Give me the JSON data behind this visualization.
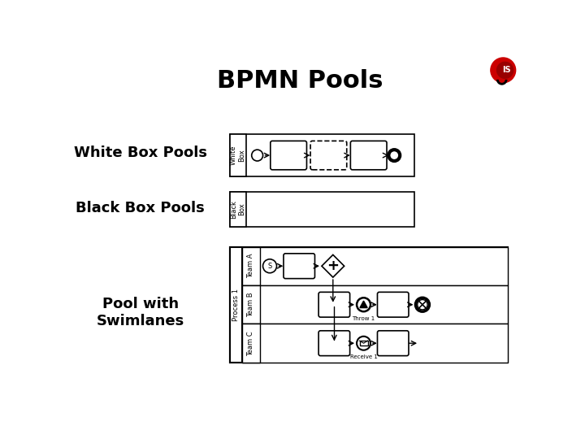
{
  "title": "BPMN Pools",
  "title_fontsize": 22,
  "bg_color": "#ffffff",
  "label_white_box": "White Box Pools",
  "label_black_box": "Black Box Pools",
  "label_swimlane": "Pool with\nSwimlanes",
  "label_fontsize": 13,
  "pool_label_fontsize": 7,
  "process1_label": "Process 1",
  "team_a_label": "Team A",
  "team_b_label": "Team B",
  "team_c_label": "Team C",
  "throw1_label": "Throw 1",
  "receive1_label": "Receive 1",
  "logo_color": "#cc0000"
}
